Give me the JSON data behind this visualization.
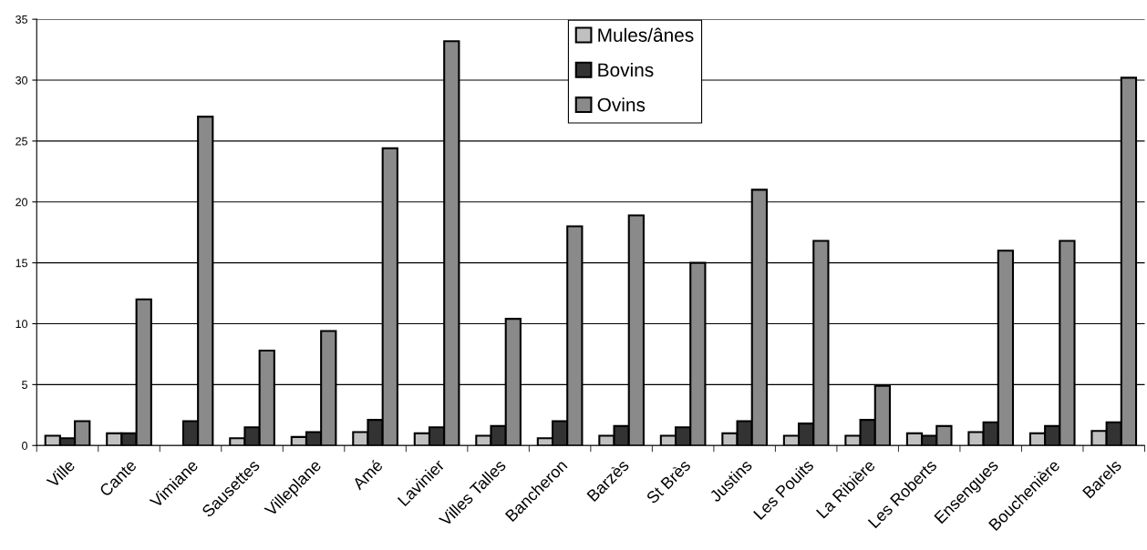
{
  "chart_data": {
    "type": "bar",
    "categories": [
      "Ville",
      "Cante",
      "Vimiane",
      "Sausettes",
      "Villeplane",
      "Amé",
      "Lavinier",
      "Villes Talles",
      "Bancheron",
      "Barzès",
      "St Brès",
      "Justins",
      "Les Pouits",
      "La Ribière",
      "Les Roberts",
      "Ensengues",
      "Bouchenière",
      "Barels"
    ],
    "series": [
      {
        "name": "Mules/ânes",
        "color": "#c0c0c0",
        "values": [
          0.8,
          1.0,
          null,
          0.6,
          0.7,
          1.1,
          1.0,
          0.8,
          0.6,
          0.8,
          0.8,
          1.0,
          0.8,
          0.8,
          1.0,
          1.1,
          1.0,
          1.2
        ]
      },
      {
        "name": "Bovins",
        "color": "#333333",
        "values": [
          0.6,
          1.0,
          2.0,
          1.5,
          1.1,
          2.1,
          1.5,
          1.6,
          2.0,
          1.6,
          1.5,
          2.0,
          1.8,
          2.1,
          0.8,
          1.9,
          1.6,
          1.9
        ]
      },
      {
        "name": "Ovins",
        "color": "#8a8a8a",
        "values": [
          2.0,
          12.0,
          27.0,
          7.8,
          9.4,
          24.4,
          33.2,
          10.4,
          18.0,
          18.9,
          15.0,
          21.0,
          16.8,
          4.9,
          1.6,
          16.0,
          16.8,
          30.2
        ]
      }
    ],
    "ylim": [
      0,
      35
    ],
    "yticks": [
      0,
      5,
      10,
      15,
      20,
      25,
      30,
      35
    ],
    "grid": "y",
    "legend": "top"
  }
}
